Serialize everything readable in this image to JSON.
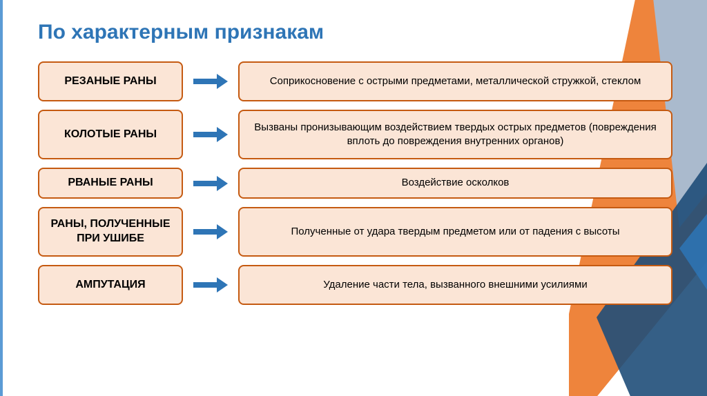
{
  "title": "По характерным признакам",
  "colors": {
    "title_color": "#2e75b6",
    "box_bg": "#fbe5d6",
    "box_border": "#c55a11",
    "arrow_color": "#2e75b6",
    "bg_orange": "#ed7d31",
    "bg_blue_dark": "#1f4e79",
    "bg_blue_light": "#9dc3e6",
    "left_border": "#5b9bd5"
  },
  "rows": [
    {
      "label": "РЕЗАНЫЕ РАНЫ",
      "description": "Соприкосновение с острыми предметами, металлической стружкой, стеклом",
      "height_class": "row-med"
    },
    {
      "label": "КОЛОТЫЕ РАНЫ",
      "description": "Вызваны пронизывающим воздействием твердых острых предметов (повреждения вплоть до повреждения внутренних органов)",
      "height_class": "row-tall"
    },
    {
      "label": "РВАНЫЕ РАНЫ",
      "description": "Воздействие осколков",
      "height_class": "row-short"
    },
    {
      "label": "РАНЫ, ПОЛУЧЕННЫЕ ПРИ УШИБЕ",
      "description": "Полученные от удара твердым предметом или от падения с высоты",
      "height_class": "row-tall"
    },
    {
      "label": "АМПУТАЦИЯ",
      "description": "Удаление части тела, вызванного внешними усилиями",
      "height_class": "row-med"
    }
  ],
  "arrow": {
    "width": 50,
    "height": 20
  }
}
